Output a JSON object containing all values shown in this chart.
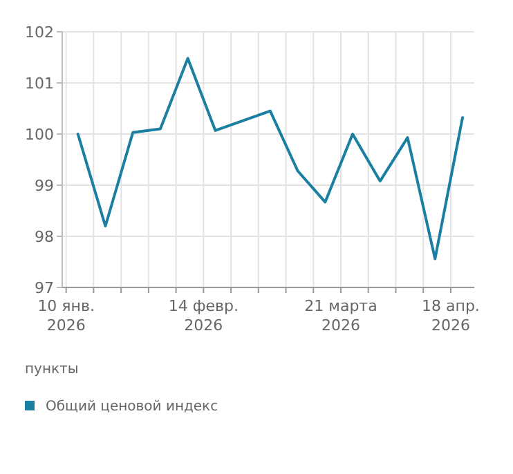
{
  "chart_data": {
    "type": "line",
    "ylabel": "пункты",
    "x": [
      "2026-01-13",
      "2026-01-20",
      "2026-01-27",
      "2026-02-03",
      "2026-02-10",
      "2026-02-17",
      "2026-03-03",
      "2026-03-10",
      "2026-03-17",
      "2026-03-24",
      "2026-03-31",
      "2026-04-07",
      "2026-04-14",
      "2026-04-21"
    ],
    "series": [
      {
        "name": "Общий ценовой индекс",
        "color": "#1a7fa0",
        "values": [
          100.0,
          98.2,
          100.03,
          100.1,
          101.48,
          100.07,
          100.45,
          99.28,
          98.67,
          100.0,
          99.08,
          99.93,
          97.56,
          100.32
        ]
      }
    ],
    "xlim": [
      "2026-01-09",
      "2026-04-24"
    ],
    "xticks": [
      {
        "value": "2026-01-10",
        "label": "10 янв.\n2026"
      },
      {
        "value": "2026-01-17",
        "label": null
      },
      {
        "value": "2026-01-24",
        "label": null
      },
      {
        "value": "2026-01-31",
        "label": null
      },
      {
        "value": "2026-02-07",
        "label": null
      },
      {
        "value": "2026-02-14",
        "label": "14 февр.\n2026"
      },
      {
        "value": "2026-02-21",
        "label": null
      },
      {
        "value": "2026-02-28",
        "label": null
      },
      {
        "value": "2026-03-07",
        "label": null
      },
      {
        "value": "2026-03-14",
        "label": null
      },
      {
        "value": "2026-03-21",
        "label": "21 марта\n2026"
      },
      {
        "value": "2026-03-28",
        "label": null
      },
      {
        "value": "2026-04-04",
        "label": null
      },
      {
        "value": "2026-04-11",
        "label": null
      },
      {
        "value": "2026-04-18",
        "label": "18 апр.\n2026"
      }
    ],
    "ylim": [
      97,
      102
    ],
    "yticks": [
      97,
      98,
      99,
      100,
      101,
      102
    ],
    "grid": true,
    "legend": "bottom",
    "marker": "none",
    "line_style": "solid"
  }
}
